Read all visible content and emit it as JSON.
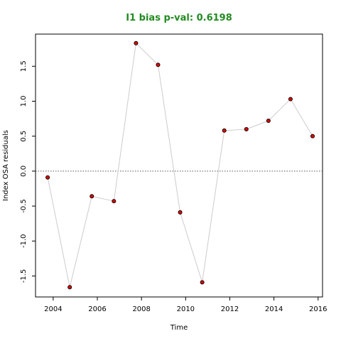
{
  "chart_data": {
    "type": "scatter",
    "title": "I1 bias p-val: 0.6198",
    "title_color": "#228b22",
    "xlabel": "Time",
    "ylabel": "Index OSA residuals",
    "xlim": [
      2003.2,
      2016.2
    ],
    "ylim": [
      -1.8,
      1.96
    ],
    "x_ticks": [
      2004,
      2006,
      2008,
      2010,
      2012,
      2014,
      2016
    ],
    "y_ticks": [
      -1.5,
      -1.0,
      -0.5,
      0.0,
      0.5,
      1.0,
      1.5
    ],
    "y_tick_labels": [
      "-1.5",
      "-1.0",
      "-0.5",
      "0.0",
      "0.5",
      "1.0",
      "1.5"
    ],
    "reference_line": 0,
    "grid": false,
    "series": [
      {
        "x": [
          2003.75,
          2004.75,
          2005.75,
          2006.75,
          2007.75,
          2008.75,
          2009.75,
          2010.75,
          2011.75,
          2012.75,
          2013.75,
          2014.75,
          2015.75
        ],
        "y": [
          -0.09,
          -1.66,
          -0.36,
          -0.43,
          1.83,
          1.52,
          -0.59,
          -1.59,
          0.58,
          0.6,
          0.72,
          1.03,
          0.5
        ],
        "point_color": "#d40000",
        "line_color": "#cccccc"
      }
    ]
  }
}
